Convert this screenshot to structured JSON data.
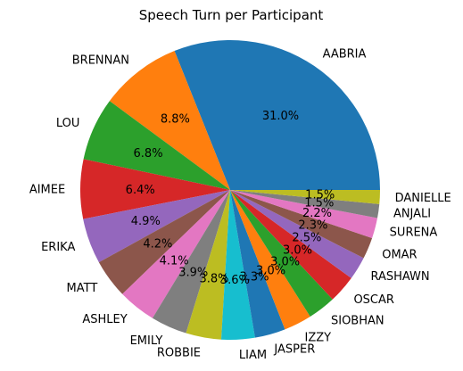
{
  "chart_data": {
    "type": "pie",
    "title": "Speech Turn per Participant",
    "start_angle_deg": 0,
    "direction": "counterclockwise",
    "slices": [
      {
        "label": "AABRIA",
        "value": 31.0,
        "pct_label": "31.0%",
        "color": "#1f77b4"
      },
      {
        "label": "BRENNAN",
        "value": 8.8,
        "pct_label": "8.8%",
        "color": "#ff7f0e"
      },
      {
        "label": "LOU",
        "value": 6.8,
        "pct_label": "6.8%",
        "color": "#2ca02c"
      },
      {
        "label": "AIMEE",
        "value": 6.4,
        "pct_label": "6.4%",
        "color": "#d62728"
      },
      {
        "label": "ERIKA",
        "value": 4.9,
        "pct_label": "4.9%",
        "color": "#9467bd"
      },
      {
        "label": "MATT",
        "value": 4.2,
        "pct_label": "4.2%",
        "color": "#8c564b"
      },
      {
        "label": "ASHLEY",
        "value": 4.1,
        "pct_label": "4.1%",
        "color": "#e377c2"
      },
      {
        "label": "EMILY",
        "value": 3.9,
        "pct_label": "3.9%",
        "color": "#7f7f7f"
      },
      {
        "label": "ROBBIE",
        "value": 3.8,
        "pct_label": "3.8%",
        "color": "#bcbd22"
      },
      {
        "label": "LIAM",
        "value": 3.6,
        "pct_label": "3.6%",
        "color": "#17becf"
      },
      {
        "label": "JASPER",
        "value": 3.3,
        "pct_label": "3.3%",
        "color": "#1f77b4"
      },
      {
        "label": "IZZY",
        "value": 3.0,
        "pct_label": "3.0%",
        "color": "#ff7f0e"
      },
      {
        "label": "SIOBHAN",
        "value": 3.0,
        "pct_label": "3.0%",
        "color": "#2ca02c"
      },
      {
        "label": "OSCAR",
        "value": 3.0,
        "pct_label": "3.0%",
        "color": "#d62728"
      },
      {
        "label": "RASHAWN",
        "value": 2.5,
        "pct_label": "2.5%",
        "color": "#9467bd"
      },
      {
        "label": "OMAR",
        "value": 2.3,
        "pct_label": "2.3%",
        "color": "#8c564b"
      },
      {
        "label": "SURENA",
        "value": 2.2,
        "pct_label": "2.2%",
        "color": "#e377c2"
      },
      {
        "label": "ANJALI",
        "value": 1.5,
        "pct_label": "1.5%",
        "color": "#7f7f7f"
      },
      {
        "label": "DANIELLE",
        "value": 1.5,
        "pct_label": "1.5%",
        "color": "#bcbd22"
      }
    ]
  }
}
